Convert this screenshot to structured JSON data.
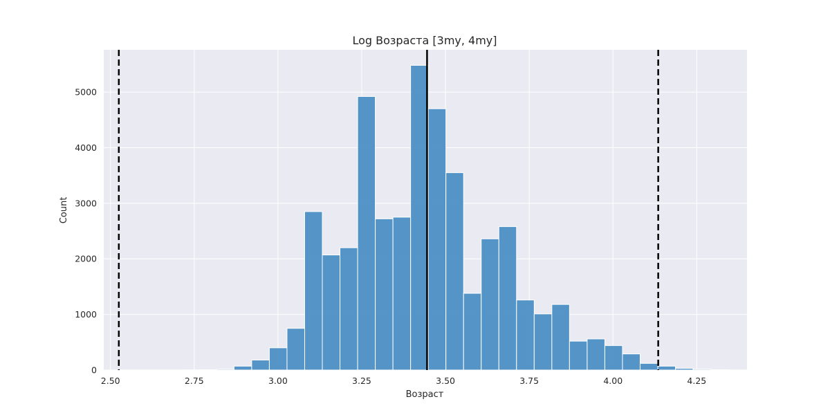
{
  "chart_data": {
    "type": "bar",
    "title": "Log Возраста [3my, 4my]",
    "xlabel": "Возраст",
    "ylabel": "Count",
    "xlim": [
      2.48,
      4.4
    ],
    "ylim": [
      0,
      5760
    ],
    "x_ticks": [
      2.5,
      2.75,
      3.0,
      3.25,
      3.5,
      3.75,
      4.0,
      4.25
    ],
    "x_tick_labels": [
      "2.50",
      "2.75",
      "3.00",
      "3.25",
      "3.50",
      "3.75",
      "4.00",
      "4.25"
    ],
    "y_ticks": [
      0,
      1000,
      2000,
      3000,
      4000,
      5000
    ],
    "y_tick_labels": [
      "0",
      "1000",
      "2000",
      "3000",
      "4000",
      "5000"
    ],
    "grid": true,
    "bin_width": 0.0527,
    "bins": [
      {
        "x0": 2.5,
        "value": 2
      },
      {
        "x0": 2.5527,
        "value": 2
      },
      {
        "x0": 2.6054,
        "value": 2
      },
      {
        "x0": 2.6581,
        "value": 2
      },
      {
        "x0": 2.7108,
        "value": 3
      },
      {
        "x0": 2.7635,
        "value": 5
      },
      {
        "x0": 2.8162,
        "value": 15
      },
      {
        "x0": 2.8689,
        "value": 70
      },
      {
        "x0": 2.9216,
        "value": 180
      },
      {
        "x0": 2.9743,
        "value": 400
      },
      {
        "x0": 3.027,
        "value": 750
      },
      {
        "x0": 3.0797,
        "value": 2850
      },
      {
        "x0": 3.1324,
        "value": 2070
      },
      {
        "x0": 3.1851,
        "value": 2200
      },
      {
        "x0": 3.2378,
        "value": 4920
      },
      {
        "x0": 3.2905,
        "value": 2720
      },
      {
        "x0": 3.3432,
        "value": 2750
      },
      {
        "x0": 3.3959,
        "value": 5480
      },
      {
        "x0": 3.4486,
        "value": 4700
      },
      {
        "x0": 3.5013,
        "value": 3550
      },
      {
        "x0": 3.554,
        "value": 1380
      },
      {
        "x0": 3.6067,
        "value": 2360
      },
      {
        "x0": 3.6594,
        "value": 2580
      },
      {
        "x0": 3.7121,
        "value": 1260
      },
      {
        "x0": 3.7648,
        "value": 1010
      },
      {
        "x0": 3.8175,
        "value": 1180
      },
      {
        "x0": 3.8702,
        "value": 520
      },
      {
        "x0": 3.9229,
        "value": 560
      },
      {
        "x0": 3.9756,
        "value": 440
      },
      {
        "x0": 4.0283,
        "value": 290
      },
      {
        "x0": 4.081,
        "value": 120
      },
      {
        "x0": 4.1337,
        "value": 70
      },
      {
        "x0": 4.1864,
        "value": 30
      },
      {
        "x0": 4.2391,
        "value": 15
      },
      {
        "x0": 4.2918,
        "value": 5
      },
      {
        "x0": 4.3445,
        "value": 2
      }
    ],
    "reference_lines": [
      {
        "x": 2.525,
        "style": "dashed"
      },
      {
        "x": 3.445,
        "style": "solid"
      },
      {
        "x": 4.135,
        "style": "dashed"
      }
    ],
    "colors": {
      "bar": "#4c8fc4",
      "bar_edge": "#ffffff",
      "plot_bg": "#eaeaf2",
      "grid": "#ffffff",
      "ref_line": "#000000"
    }
  }
}
